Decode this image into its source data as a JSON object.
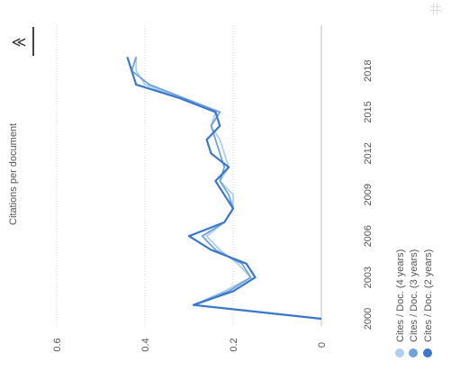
{
  "toolbar": {
    "zoom_icon": "zoom-tool-icon",
    "grid_icon": "grid-icon"
  },
  "chart_data": {
    "type": "line",
    "ylabel": "Citations per document",
    "ylim": [
      0,
      0.7
    ],
    "yticks": [
      "0",
      "0.2",
      "0.4",
      "0.6"
    ],
    "yticks_values": [
      0,
      0.2,
      0.4,
      0.6
    ],
    "xlim": [
      1999.6,
      2019.9
    ],
    "xticks": [
      "2000",
      "2003",
      "2006",
      "2009",
      "2012",
      "2015",
      "2018"
    ],
    "xticks_values": [
      2000,
      2003,
      2006,
      2009,
      2012,
      2015,
      2018
    ],
    "orientation": "rotated-90-clockwise",
    "grid": true,
    "legend_position": "bottom-left",
    "series": [
      {
        "name": "Cites / Doc. (4 years)",
        "color": "#aecdf0",
        "x": [
          2000,
          2001,
          2002,
          2003,
          2004,
          2005,
          2006,
          2007,
          2008,
          2009,
          2010,
          2011,
          2012,
          2013,
          2014,
          2015,
          2016,
          2017,
          2018,
          2019
        ],
        "values": [
          0.0,
          0.29,
          0.22,
          0.16,
          0.19,
          0.23,
          0.26,
          0.22,
          0.2,
          0.2,
          0.23,
          0.21,
          0.22,
          0.23,
          0.25,
          0.24,
          0.32,
          0.4,
          0.42,
          0.42
        ]
      },
      {
        "name": "Cites / Doc. (3 years)",
        "color": "#6fa3dc",
        "x": [
          2000,
          2001,
          2002,
          2003,
          2004,
          2005,
          2006,
          2007,
          2008,
          2009,
          2010,
          2011,
          2012,
          2013,
          2014,
          2015,
          2016,
          2017,
          2018,
          2019
        ],
        "values": [
          0.0,
          0.29,
          0.21,
          0.16,
          0.18,
          0.24,
          0.27,
          0.22,
          0.2,
          0.21,
          0.23,
          0.22,
          0.23,
          0.24,
          0.25,
          0.23,
          0.31,
          0.39,
          0.43,
          0.42
        ]
      },
      {
        "name": "Cites / Doc. (2 years)",
        "color": "#3a78c9",
        "x": [
          2000,
          2001,
          2002,
          2003,
          2004,
          2005,
          2006,
          2007,
          2008,
          2009,
          2010,
          2011,
          2012,
          2013,
          2014,
          2015,
          2016,
          2017,
          2018,
          2019
        ],
        "values": [
          0.0,
          0.29,
          0.2,
          0.15,
          0.17,
          0.25,
          0.3,
          0.22,
          0.2,
          0.22,
          0.24,
          0.21,
          0.25,
          0.26,
          0.23,
          0.24,
          0.32,
          0.42,
          0.43,
          0.44
        ]
      }
    ]
  }
}
